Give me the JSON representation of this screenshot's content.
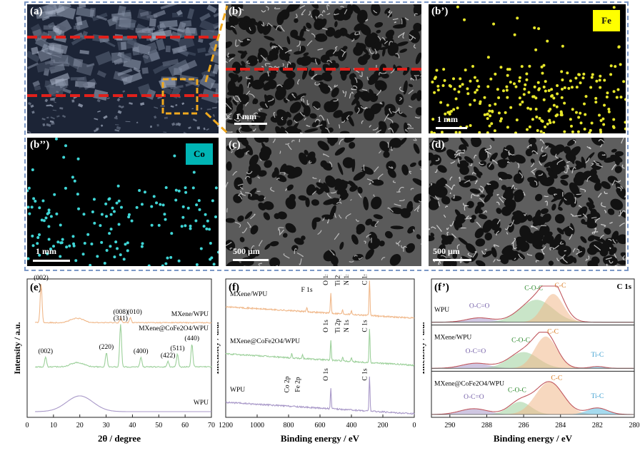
{
  "panels": {
    "a": {
      "label": "(a)"
    },
    "b": {
      "label": "(b)",
      "scale": "1 mm"
    },
    "b_prime": {
      "label": "(b’)",
      "tag": "Fe",
      "tag_color": "#ffff00",
      "dot_color": "#e6e62a",
      "scale": "1 mm"
    },
    "b_dprime": {
      "label": "(b’’)",
      "tag": "Co",
      "tag_color": "#00b5b5",
      "dot_color": "#3fd6d6",
      "scale": "1 mm"
    },
    "c": {
      "label": "(c)",
      "scale": "500 μm"
    },
    "d": {
      "label": "(d)",
      "scale": "500 μm"
    }
  },
  "colors": {
    "frame": "#7c98c6",
    "red_dash": "#e0201b",
    "orange_box": "#f0a91f",
    "orange": "#f0b88a",
    "green": "#9cd09a",
    "purple": "#a898c8"
  },
  "chart_data": [
    {
      "type": "line",
      "panel_label": "(e)",
      "xlabel": "2θ / degree",
      "ylabel": "Intensity / a.u.",
      "xlim": [
        0,
        70
      ],
      "xticks": [
        0,
        10,
        20,
        30,
        40,
        50,
        60,
        70
      ],
      "series": [
        {
          "name": "MXene/WPU",
          "color": "#f0b88a",
          "peaks": [
            {
              "x": 5.3,
              "label": "(002)"
            },
            {
              "x": 35.5,
              "label": "(008)"
            },
            {
              "x": 39.2,
              "label": "(010)"
            }
          ]
        },
        {
          "name": "MXene@CoFe2O4/WPU",
          "color": "#9cd09a",
          "peaks": [
            {
              "x": 7.0,
              "label": "(002)"
            },
            {
              "x": 30.1,
              "label": "(220)"
            },
            {
              "x": 35.5,
              "label": "(311)"
            },
            {
              "x": 43.2,
              "label": "(400)"
            },
            {
              "x": 53.5,
              "label": "(422)"
            },
            {
              "x": 57.1,
              "label": "(511)"
            },
            {
              "x": 62.6,
              "label": "(440)"
            }
          ]
        },
        {
          "name": "WPU",
          "color": "#a898c8",
          "peaks": [
            {
              "x": 20.0,
              "label": ""
            }
          ]
        }
      ]
    },
    {
      "type": "line",
      "panel_label": "(f)",
      "xlabel": "Binding energy / eV",
      "ylabel": "Intensity / a.u.",
      "xlim": [
        1200,
        0
      ],
      "xticks": [
        1200,
        1000,
        800,
        600,
        400,
        200,
        0
      ],
      "series": [
        {
          "name": "MXene/WPU",
          "color": "#f0b88a",
          "peaks": [
            {
              "x": 684,
              "label": "F 1s"
            },
            {
              "x": 531,
              "label": "O 1s"
            },
            {
              "x": 456,
              "label": "Ti 2p"
            },
            {
              "x": 400,
              "label": "N 1s"
            },
            {
              "x": 284.8,
              "label": "C 1s"
            }
          ]
        },
        {
          "name": "MXene@CoFe2O4/WPU",
          "color": "#9cd09a",
          "peaks": [
            {
              "x": 780,
              "label": "Co 2p"
            },
            {
              "x": 711,
              "label": "Fe 2p"
            },
            {
              "x": 531,
              "label": "O 1s"
            },
            {
              "x": 456,
              "label": "Ti 2p"
            },
            {
              "x": 400,
              "label": "N 1s"
            },
            {
              "x": 284.8,
              "label": "C 1s"
            }
          ]
        },
        {
          "name": "WPU",
          "color": "#a898c8",
          "peaks": [
            {
              "x": 531,
              "label": "O 1s"
            },
            {
              "x": 284.8,
              "label": "C 1s"
            }
          ]
        }
      ]
    },
    {
      "type": "area",
      "panel_label": "(f’)",
      "corner_label": "C 1s",
      "xlabel": "Binding energy / eV",
      "ylabel": "Intensity / a.u.",
      "xlim": [
        291,
        280
      ],
      "xticks": [
        290,
        288,
        286,
        284,
        282,
        280
      ],
      "subpanels": [
        {
          "name": "WPU",
          "components": [
            {
              "label": "O-C=O",
              "center": 288.4,
              "height": 0.12,
              "width": 0.7,
              "color": "#a898c8"
            },
            {
              "label": "C-O-C",
              "center": 285.3,
              "height": 0.62,
              "width": 0.9,
              "color": "#9cd09a"
            },
            {
              "label": "C-C",
              "center": 284.4,
              "height": 0.78,
              "width": 0.55,
              "color": "#f0b88a"
            }
          ]
        },
        {
          "name": "MXene/WPU",
          "components": [
            {
              "label": "O-C=O",
              "center": 288.6,
              "height": 0.14,
              "width": 0.75,
              "color": "#a898c8"
            },
            {
              "label": "C-O-C",
              "center": 286.0,
              "height": 0.45,
              "width": 0.8,
              "color": "#9cd09a"
            },
            {
              "label": "C-C",
              "center": 284.8,
              "height": 0.88,
              "width": 0.6,
              "color": "#f0b88a"
            },
            {
              "label": "Ti-C",
              "center": 282.0,
              "height": 0.05,
              "width": 0.4,
              "color": "#5bbbe0"
            }
          ]
        },
        {
          "name": "MXene@CoFe2O4/WPU",
          "components": [
            {
              "label": "O-C=O",
              "center": 288.7,
              "height": 0.16,
              "width": 0.75,
              "color": "#a898c8"
            },
            {
              "label": "C-O-C",
              "center": 286.2,
              "height": 0.35,
              "width": 0.6,
              "color": "#9cd09a"
            },
            {
              "label": "C-C",
              "center": 284.6,
              "height": 0.9,
              "width": 0.75,
              "color": "#f0b88a"
            },
            {
              "label": "Ti-C",
              "center": 282.0,
              "height": 0.18,
              "width": 0.55,
              "color": "#5bbbe0"
            }
          ]
        }
      ]
    }
  ]
}
